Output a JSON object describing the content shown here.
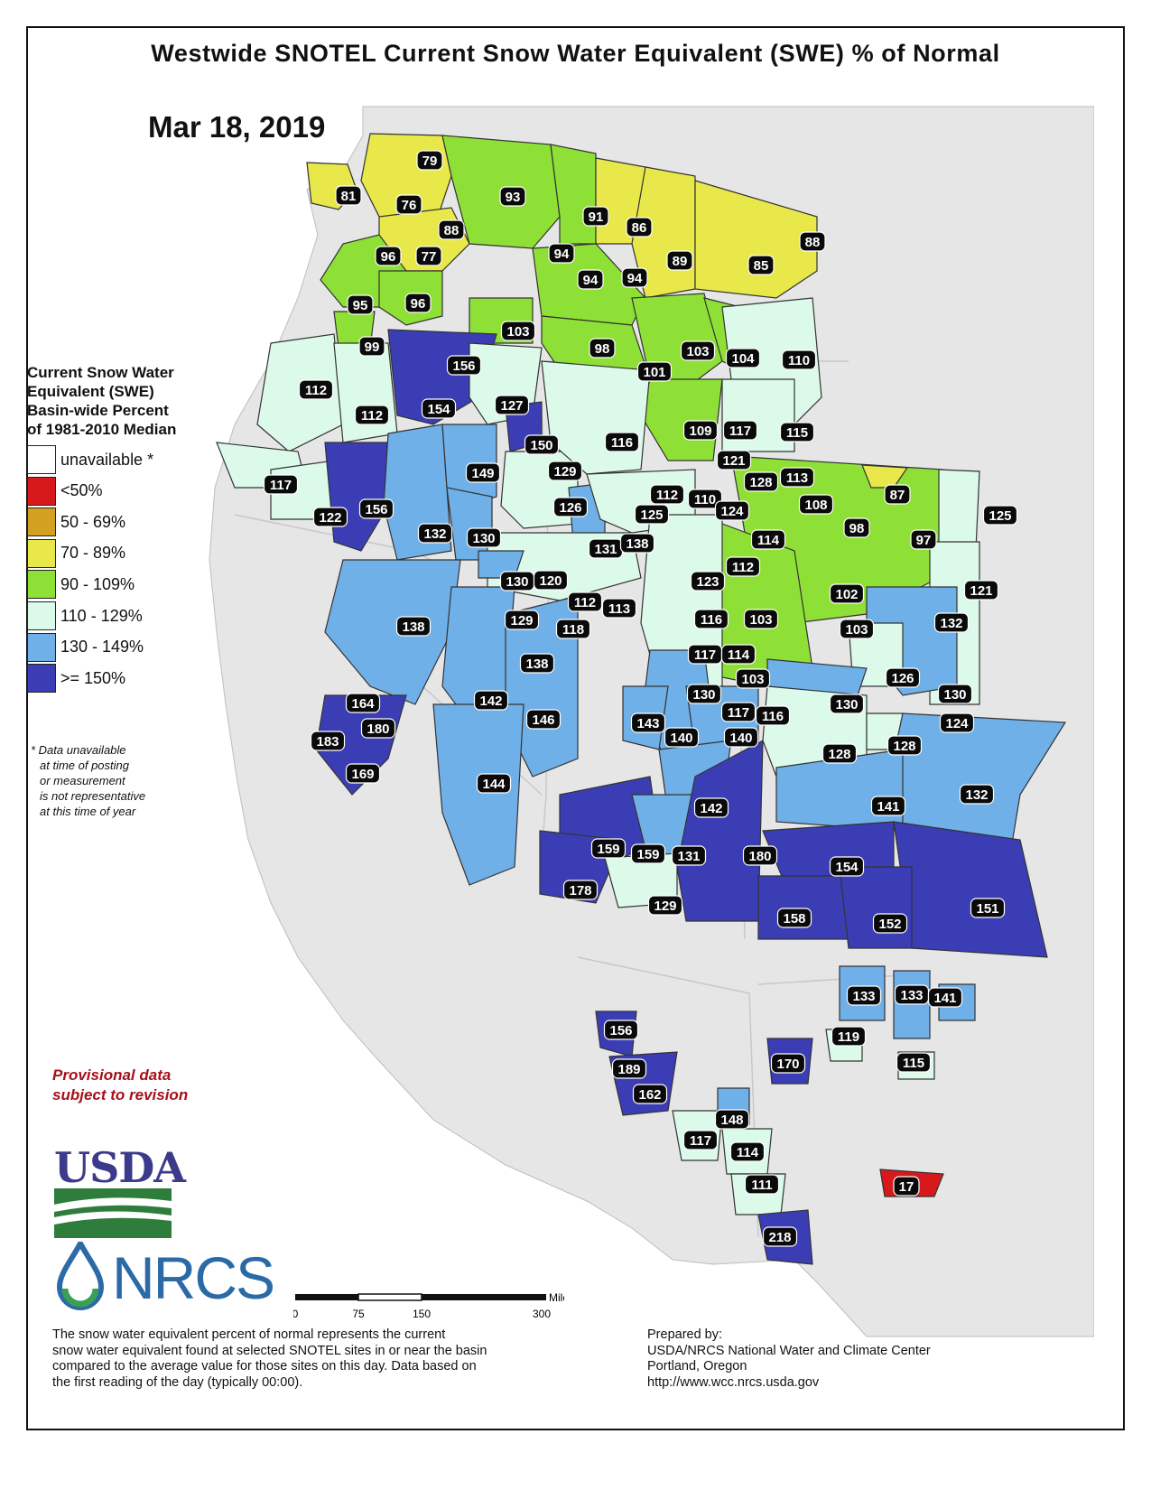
{
  "title": "Westwide SNOTEL Current Snow Water Equivalent (SWE) % of Normal",
  "date": "Mar 18, 2019",
  "legend": {
    "title_lines": [
      "Current Snow Water",
      "Equivalent (SWE)",
      "Basin-wide Percent",
      "of 1981-2010 Median"
    ],
    "items": [
      {
        "label": "unavailable *",
        "color": "#ffffff"
      },
      {
        "label": "<50%",
        "color": "#d7191c"
      },
      {
        "label": "50 - 69%",
        "color": "#d4a021"
      },
      {
        "label": "70 - 89%",
        "color": "#e8e84a"
      },
      {
        "label": "90 - 109%",
        "color": "#8fe036"
      },
      {
        "label": "110 - 129%",
        "color": "#dcfaea"
      },
      {
        "label": "130 - 149%",
        "color": "#6fb0e8"
      },
      {
        "label": ">= 150%",
        "color": "#3b3db5"
      }
    ]
  },
  "footnote": [
    "*  Data unavailable",
    "at time of posting",
    "or measurement",
    "is not representative",
    "at this time of year"
  ],
  "provisional": [
    "Provisional data",
    "subject to revision"
  ],
  "logos": {
    "usda": "USDA",
    "nrcs": "NRCS"
  },
  "scale_bar": {
    "ticks": [
      "0",
      "75",
      "150",
      "300"
    ],
    "unit": "Miles"
  },
  "description": [
    "The snow water equivalent percent of normal represents the current",
    "snow water equivalent found at selected SNOTEL sites in or near the basin",
    "compared to the average value for those sites on this day. Data based on",
    "the first reading of the day (typically 00:00)."
  ],
  "prepared_by": [
    "Prepared by:",
    "USDA/NRCS National Water and Climate Center",
    "Portland, Oregon",
    "http://www.wcc.nrcs.usda.gov"
  ],
  "basin_values": [
    "79",
    "81",
    "76",
    "88",
    "93",
    "91",
    "86",
    "96",
    "77",
    "94",
    "89",
    "85",
    "88",
    "94",
    "94",
    "95",
    "96",
    "103",
    "99",
    "98",
    "101",
    "103",
    "104",
    "110",
    "156",
    "112",
    "112",
    "154",
    "127",
    "150",
    "116",
    "109",
    "117",
    "115",
    "129",
    "121",
    "117",
    "149",
    "156",
    "128",
    "113",
    "87",
    "108",
    "112",
    "110",
    "126",
    "124",
    "125",
    "125",
    "98",
    "97",
    "132",
    "130",
    "131",
    "138",
    "114",
    "122",
    "123",
    "112",
    "130",
    "120",
    "112",
    "113",
    "121",
    "102",
    "103",
    "116",
    "138",
    "129",
    "118",
    "103",
    "132",
    "117",
    "114",
    "138",
    "126",
    "103",
    "142",
    "146",
    "130",
    "130",
    "117",
    "116",
    "130",
    "124",
    "164",
    "143",
    "183",
    "180",
    "140",
    "140",
    "128",
    "128",
    "169",
    "144",
    "141",
    "132",
    "142",
    "159",
    "159",
    "131",
    "180",
    "154",
    "151",
    "178",
    "129",
    "158",
    "152",
    "133",
    "133",
    "141",
    "119",
    "156",
    "170",
    "115",
    "189",
    "162",
    "148",
    "117",
    "114",
    "111",
    "17",
    "218"
  ]
}
